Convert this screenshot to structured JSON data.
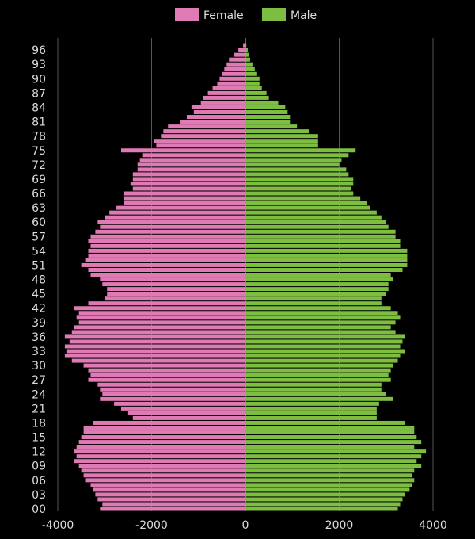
{
  "chart_data": {
    "type": "bar",
    "orientation": "horizontal",
    "layout": "population-pyramid",
    "xlim": [
      -4000,
      4000
    ],
    "x_ticks": [
      -4000,
      -2000,
      0,
      2000,
      4000
    ],
    "x_tick_labels": [
      "-4000",
      "-2000",
      "0",
      "2000",
      "4000"
    ],
    "y_tick_labels": [
      "00",
      "03",
      "06",
      "09",
      "12",
      "15",
      "18",
      "21",
      "24",
      "27",
      "30",
      "33",
      "36",
      "39",
      "42",
      "45",
      "48",
      "51",
      "54",
      "57",
      "60",
      "63",
      "66",
      "69",
      "72",
      "75",
      "78",
      "81",
      "84",
      "87",
      "90",
      "93",
      "96"
    ],
    "grid": "vertical",
    "legend_position": "top-center",
    "colors": {
      "female": "#e07ab4",
      "male": "#7dbd42",
      "background": "#000000",
      "grid": "#555555",
      "text": "#dddddd"
    },
    "ages": [
      0,
      1,
      2,
      3,
      4,
      5,
      6,
      7,
      8,
      9,
      10,
      11,
      12,
      13,
      14,
      15,
      16,
      17,
      18,
      19,
      20,
      21,
      22,
      23,
      24,
      25,
      26,
      27,
      28,
      29,
      30,
      31,
      32,
      33,
      34,
      35,
      36,
      37,
      38,
      39,
      40,
      41,
      42,
      43,
      44,
      45,
      46,
      47,
      48,
      49,
      50,
      51,
      52,
      53,
      54,
      55,
      56,
      57,
      58,
      59,
      60,
      61,
      62,
      63,
      64,
      65,
      66,
      67,
      68,
      69,
      70,
      71,
      72,
      73,
      74,
      75,
      76,
      77,
      78,
      79,
      80,
      81,
      82,
      83,
      84,
      85,
      86,
      87,
      88,
      89,
      90,
      91,
      92,
      93,
      94,
      95,
      96,
      97
    ],
    "series": [
      {
        "name": "Female",
        "values": [
          3100,
          3050,
          3150,
          3200,
          3250,
          3300,
          3400,
          3450,
          3500,
          3550,
          3650,
          3600,
          3650,
          3600,
          3550,
          3500,
          3450,
          3450,
          3250,
          2400,
          2500,
          2650,
          2800,
          3100,
          3050,
          3100,
          3150,
          3350,
          3300,
          3350,
          3450,
          3700,
          3850,
          3800,
          3850,
          3750,
          3850,
          3700,
          3650,
          3550,
          3600,
          3550,
          3650,
          3350,
          3000,
          2950,
          2950,
          3050,
          3100,
          3300,
          3350,
          3500,
          3400,
          3350,
          3350,
          3300,
          3350,
          3300,
          3200,
          3100,
          3150,
          3000,
          2900,
          2750,
          2600,
          2600,
          2600,
          2400,
          2450,
          2400,
          2400,
          2300,
          2300,
          2250,
          2200,
          2650,
          1900,
          1950,
          1800,
          1750,
          1650,
          1400,
          1250,
          1100,
          1150,
          950,
          900,
          800,
          700,
          600,
          550,
          500,
          450,
          400,
          350,
          250,
          150,
          50
        ]
      },
      {
        "name": "Male",
        "values": [
          3250,
          3300,
          3350,
          3400,
          3500,
          3550,
          3600,
          3550,
          3600,
          3750,
          3650,
          3750,
          3850,
          3600,
          3750,
          3650,
          3600,
          3600,
          3400,
          2800,
          2800,
          2800,
          2850,
          3150,
          3000,
          2900,
          2900,
          3100,
          3050,
          3100,
          3150,
          3250,
          3300,
          3400,
          3300,
          3350,
          3400,
          3200,
          3100,
          3200,
          3300,
          3250,
          3100,
          2900,
          2900,
          3000,
          3050,
          3050,
          3150,
          3100,
          3350,
          3450,
          3450,
          3450,
          3450,
          3300,
          3300,
          3200,
          3200,
          3050,
          3000,
          2900,
          2800,
          2650,
          2600,
          2450,
          2300,
          2250,
          2300,
          2300,
          2200,
          2150,
          2000,
          2050,
          2200,
          2350,
          1550,
          1550,
          1550,
          1350,
          1100,
          950,
          950,
          900,
          850,
          700,
          500,
          450,
          350,
          300,
          300,
          250,
          200,
          150,
          100,
          80,
          50,
          20
        ]
      }
    ]
  }
}
